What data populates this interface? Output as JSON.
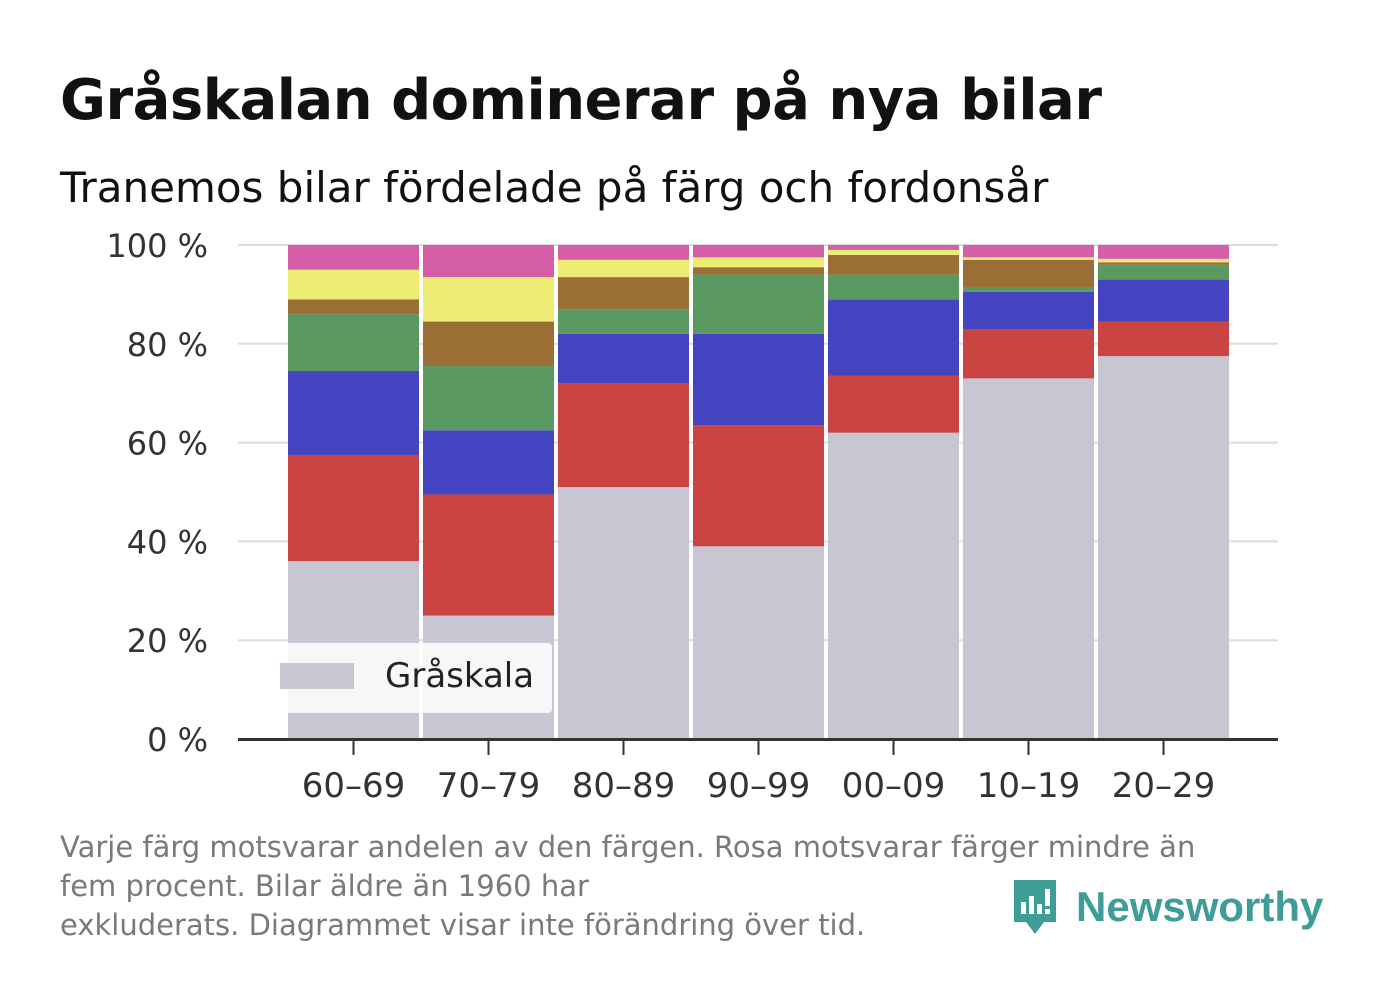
{
  "title": "Gråskalan dominerar på nya bilar",
  "subtitle": "Tranemos bilar fördelade på färg och fordonsår",
  "footnote": {
    "line1": "Varje färg motsvarar andelen av den färgen. Rosa motsvarar färger mindre än",
    "line2": "fem procent. Bilar äldre än 1960 har",
    "line3": "exkluderats. Diagrammet visar inte förändring över tid."
  },
  "brand": {
    "name": "Newsworthy",
    "icon": "newsworthy-logo-icon",
    "color": "#3f9c97"
  },
  "chart_data": {
    "type": "bar",
    "stacked": true,
    "categories": [
      "60–69",
      "70–79",
      "80–89",
      "90–99",
      "00–09",
      "10–19",
      "20–29"
    ],
    "y_tick_labels": [
      "0 %",
      "20 %",
      "40 %",
      "60 %",
      "80 %",
      "100 %"
    ],
    "ylim": [
      0,
      100
    ],
    "grid": true,
    "legend": {
      "position": "bottom-left",
      "entries": [
        "Gråskala"
      ]
    },
    "series": [
      {
        "name": "Gråskala",
        "color": "#c8c6d2",
        "values": [
          36,
          25,
          51,
          39,
          62,
          73,
          77.5
        ]
      },
      {
        "color": "#cb4444",
        "values": [
          21.5,
          24.5,
          21,
          24.5,
          11.5,
          10,
          7
        ]
      },
      {
        "color": "#4444c1",
        "values": [
          17,
          13,
          10,
          18.5,
          15.5,
          7.5,
          8.5
        ]
      },
      {
        "color": "#5a9a60",
        "values": [
          11.5,
          13,
          5,
          12,
          5,
          1,
          3
        ]
      },
      {
        "color": "#9a6e35",
        "values": [
          3,
          9,
          6.5,
          1.5,
          4,
          5.5,
          0.5
        ]
      },
      {
        "color": "#eded75",
        "values": [
          6,
          9,
          3.5,
          2,
          1,
          0.5,
          0.7
        ]
      },
      {
        "color": "#d45fa8",
        "values": [
          5,
          6.5,
          3,
          2.5,
          1,
          2.5,
          2.8
        ]
      }
    ]
  }
}
